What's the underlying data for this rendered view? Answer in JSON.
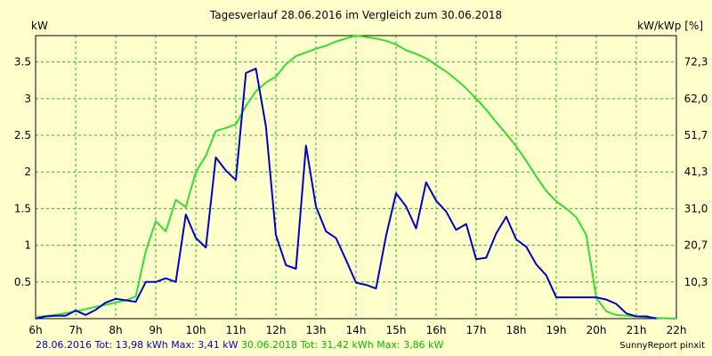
{
  "chart_data": {
    "type": "line",
    "title": "Tagesverlauf 28.06.2016 im Vergleich zum 30.06.2018",
    "ylabel_left": "kW",
    "ylabel_right": "kW/kWp [%]",
    "x_ticks": [
      "6h",
      "7h",
      "8h",
      "9h",
      "10h",
      "11h",
      "12h",
      "13h",
      "14h",
      "15h",
      "16h",
      "17h",
      "18h",
      "19h",
      "20h",
      "21h",
      "22h"
    ],
    "y_ticks_left": [
      "0.5",
      "1",
      "1.5",
      "2",
      "2.5",
      "3",
      "3.5"
    ],
    "y_ticks_right": [
      "10,3",
      "20,7",
      "31,0",
      "41,3",
      "51,7",
      "62,0",
      "72,3"
    ],
    "xlim": [
      6,
      22
    ],
    "ylim": [
      0,
      3.86
    ],
    "grid": true,
    "series": [
      {
        "name": "28.06.2016",
        "color": "#0000cc",
        "x": [
          6.0,
          6.25,
          6.5,
          6.75,
          7.0,
          7.25,
          7.5,
          7.75,
          8.0,
          8.25,
          8.5,
          8.75,
          9.0,
          9.25,
          9.5,
          9.75,
          10.0,
          10.25,
          10.5,
          10.75,
          11.0,
          11.25,
          11.5,
          11.75,
          12.0,
          12.25,
          12.5,
          12.75,
          13.0,
          13.25,
          13.5,
          13.75,
          14.0,
          14.25,
          14.5,
          14.75,
          15.0,
          15.25,
          15.5,
          15.75,
          16.0,
          16.25,
          16.5,
          16.75,
          17.0,
          17.25,
          17.5,
          17.75,
          18.0,
          18.25,
          18.5,
          18.75,
          19.0,
          19.25,
          19.5,
          19.75,
          20.0,
          20.25,
          20.5,
          20.75,
          21.0,
          21.25,
          21.5
        ],
        "values": [
          0.0,
          0.03,
          0.04,
          0.04,
          0.11,
          0.05,
          0.12,
          0.22,
          0.27,
          0.25,
          0.23,
          0.5,
          0.5,
          0.55,
          0.5,
          1.42,
          1.1,
          0.97,
          2.2,
          2.02,
          1.89,
          3.35,
          3.41,
          2.62,
          1.14,
          0.73,
          0.68,
          2.36,
          1.53,
          1.19,
          1.1,
          0.8,
          0.49,
          0.46,
          0.41,
          1.13,
          1.71,
          1.53,
          1.23,
          1.86,
          1.61,
          1.46,
          1.21,
          1.29,
          0.81,
          0.83,
          1.16,
          1.39,
          1.08,
          0.98,
          0.74,
          0.59,
          0.29,
          0.29,
          0.29,
          0.29,
          0.29,
          0.26,
          0.2,
          0.07,
          0.03,
          0.03,
          0.0
        ]
      },
      {
        "name": "30.06.2018",
        "color": "#33dd33",
        "x": [
          6.0,
          6.5,
          7.0,
          7.5,
          8.0,
          8.25,
          8.5,
          8.75,
          9.0,
          9.25,
          9.5,
          9.75,
          10.0,
          10.25,
          10.5,
          10.75,
          11.0,
          11.25,
          11.5,
          11.75,
          12.0,
          12.25,
          12.5,
          12.75,
          13.0,
          13.25,
          13.5,
          13.75,
          14.0,
          14.25,
          14.5,
          14.75,
          15.0,
          15.25,
          15.5,
          15.75,
          16.0,
          16.25,
          16.5,
          16.75,
          17.0,
          17.25,
          17.5,
          17.75,
          18.0,
          18.25,
          18.5,
          18.75,
          19.0,
          19.25,
          19.5,
          19.75,
          20.0,
          20.25,
          20.5,
          21.0,
          21.5,
          22.0
        ],
        "values": [
          0.02,
          0.05,
          0.1,
          0.16,
          0.22,
          0.25,
          0.3,
          0.92,
          1.33,
          1.19,
          1.62,
          1.52,
          2.0,
          2.22,
          2.56,
          2.6,
          2.65,
          2.9,
          3.1,
          3.22,
          3.3,
          3.47,
          3.58,
          3.63,
          3.68,
          3.72,
          3.78,
          3.82,
          3.86,
          3.84,
          3.82,
          3.79,
          3.74,
          3.66,
          3.61,
          3.55,
          3.46,
          3.37,
          3.26,
          3.14,
          3.0,
          2.85,
          2.68,
          2.52,
          2.35,
          2.15,
          1.94,
          1.74,
          1.6,
          1.5,
          1.38,
          1.14,
          0.28,
          0.1,
          0.05,
          0.03,
          0.01,
          0.0
        ]
      }
    ]
  },
  "legend": {
    "text_a": "28.06.2016 Tot: 13,98 kWh Max: 3,41 kW",
    "text_b": "30.06.2018 Tot: 31,42 kWh Max: 3,86 kW"
  },
  "credit": "SunnyReport pinxit"
}
